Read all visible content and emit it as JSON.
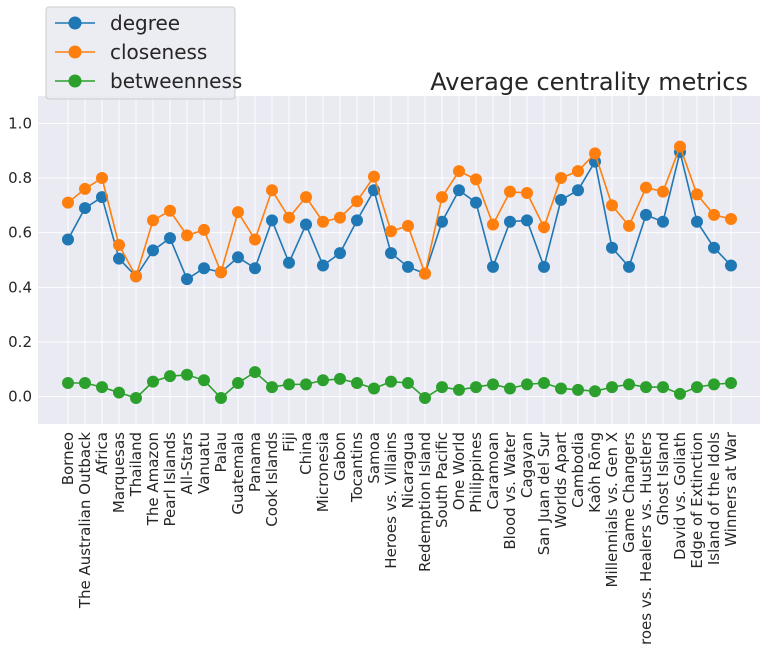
{
  "chart_data": {
    "type": "line",
    "title": "Average centrality metrics",
    "xlabel": "",
    "ylabel": "",
    "ylim": [
      -0.1,
      1.1
    ],
    "yticks": [
      "0.0",
      "0.2",
      "0.4",
      "0.6",
      "0.8",
      "1.0"
    ],
    "grid": true,
    "legend_position": "top-left",
    "categories": [
      "Borneo",
      "The Australian Outback",
      "Africa",
      "Marquesas",
      "Thailand",
      "The Amazon",
      "Pearl Islands",
      "All-Stars",
      "Vanuatu",
      "Palau",
      "Guatemala",
      "Panama",
      "Cook Islands",
      "Fiji",
      "China",
      "Micronesia",
      "Gabon",
      "Tocantins",
      "Samoa",
      "Heroes vs. Villains",
      "Nicaragua",
      "Redemption Island",
      "South Pacific",
      "One World",
      "Philippines",
      "Caramoan",
      "Blood vs. Water",
      "Cagayan",
      "San Juan del Sur",
      "Worlds Apart",
      "Cambodia",
      "Kaôh Rōng",
      "Millennials vs. Gen X",
      "Game Changers",
      "Heroes vs. Healers vs. Hustlers",
      "Ghost Island",
      "David vs. Goliath",
      "Edge of Extinction",
      "Island of the Idols",
      "Winners at War"
    ],
    "series": [
      {
        "name": "degree",
        "color": "#1f77b4",
        "values": [
          0.575,
          0.69,
          0.73,
          0.505,
          0.44,
          0.535,
          0.58,
          0.43,
          0.47,
          0.455,
          0.51,
          0.47,
          0.645,
          0.49,
          0.63,
          0.48,
          0.525,
          0.645,
          0.755,
          0.525,
          0.475,
          0.45,
          0.64,
          0.755,
          0.71,
          0.475,
          0.64,
          0.645,
          0.475,
          0.72,
          0.755,
          0.86,
          0.545,
          0.475,
          0.665,
          0.64,
          0.895,
          0.64,
          0.545,
          0.48
        ]
      },
      {
        "name": "closeness",
        "color": "#ff7f0e",
        "values": [
          0.71,
          0.76,
          0.8,
          0.555,
          0.44,
          0.645,
          0.68,
          0.59,
          0.61,
          0.455,
          0.675,
          0.575,
          0.755,
          0.655,
          0.73,
          0.64,
          0.655,
          0.715,
          0.805,
          0.605,
          0.625,
          0.45,
          0.73,
          0.825,
          0.795,
          0.63,
          0.75,
          0.745,
          0.62,
          0.8,
          0.825,
          0.89,
          0.7,
          0.625,
          0.765,
          0.75,
          0.915,
          0.74,
          0.665,
          0.65
        ]
      },
      {
        "name": "betweenness",
        "color": "#2ca02c",
        "values": [
          0.05,
          0.05,
          0.035,
          0.015,
          -0.005,
          0.055,
          0.075,
          0.08,
          0.06,
          -0.005,
          0.05,
          0.09,
          0.035,
          0.045,
          0.045,
          0.06,
          0.065,
          0.05,
          0.03,
          0.055,
          0.05,
          -0.005,
          0.035,
          0.025,
          0.035,
          0.045,
          0.03,
          0.045,
          0.05,
          0.03,
          0.025,
          0.02,
          0.035,
          0.045,
          0.035,
          0.035,
          0.01,
          0.035,
          0.045,
          0.05
        ]
      }
    ]
  }
}
